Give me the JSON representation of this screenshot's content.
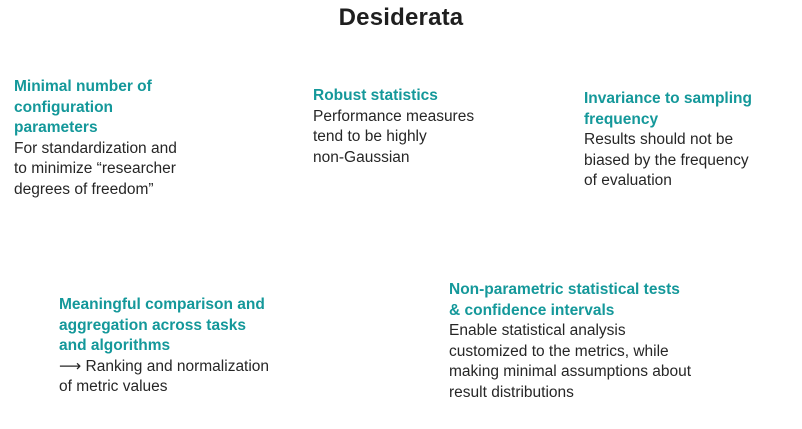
{
  "slide": {
    "title": "Desiderata",
    "items": [
      {
        "heading": "Minimal number of\nconfiguration\nparameters",
        "body": "For standardization and\nto minimize “researcher\ndegrees of freedom”"
      },
      {
        "heading": "Robust statistics",
        "body": "Performance measures\ntend to be highly\nnon-Gaussian"
      },
      {
        "heading": "Invariance to sampling\nfrequency",
        "body": "Results should not be\nbiased by the frequency\nof evaluation"
      },
      {
        "heading": "Meaningful comparison and\naggregation across tasks\nand algorithms",
        "body": "⟶ Ranking and normalization\nof metric values"
      },
      {
        "heading": "Non-parametric statistical tests\n& confidence intervals",
        "body": "Enable statistical analysis\ncustomized to the metrics, while\nmaking minimal assumptions about\nresult distributions"
      }
    ]
  }
}
